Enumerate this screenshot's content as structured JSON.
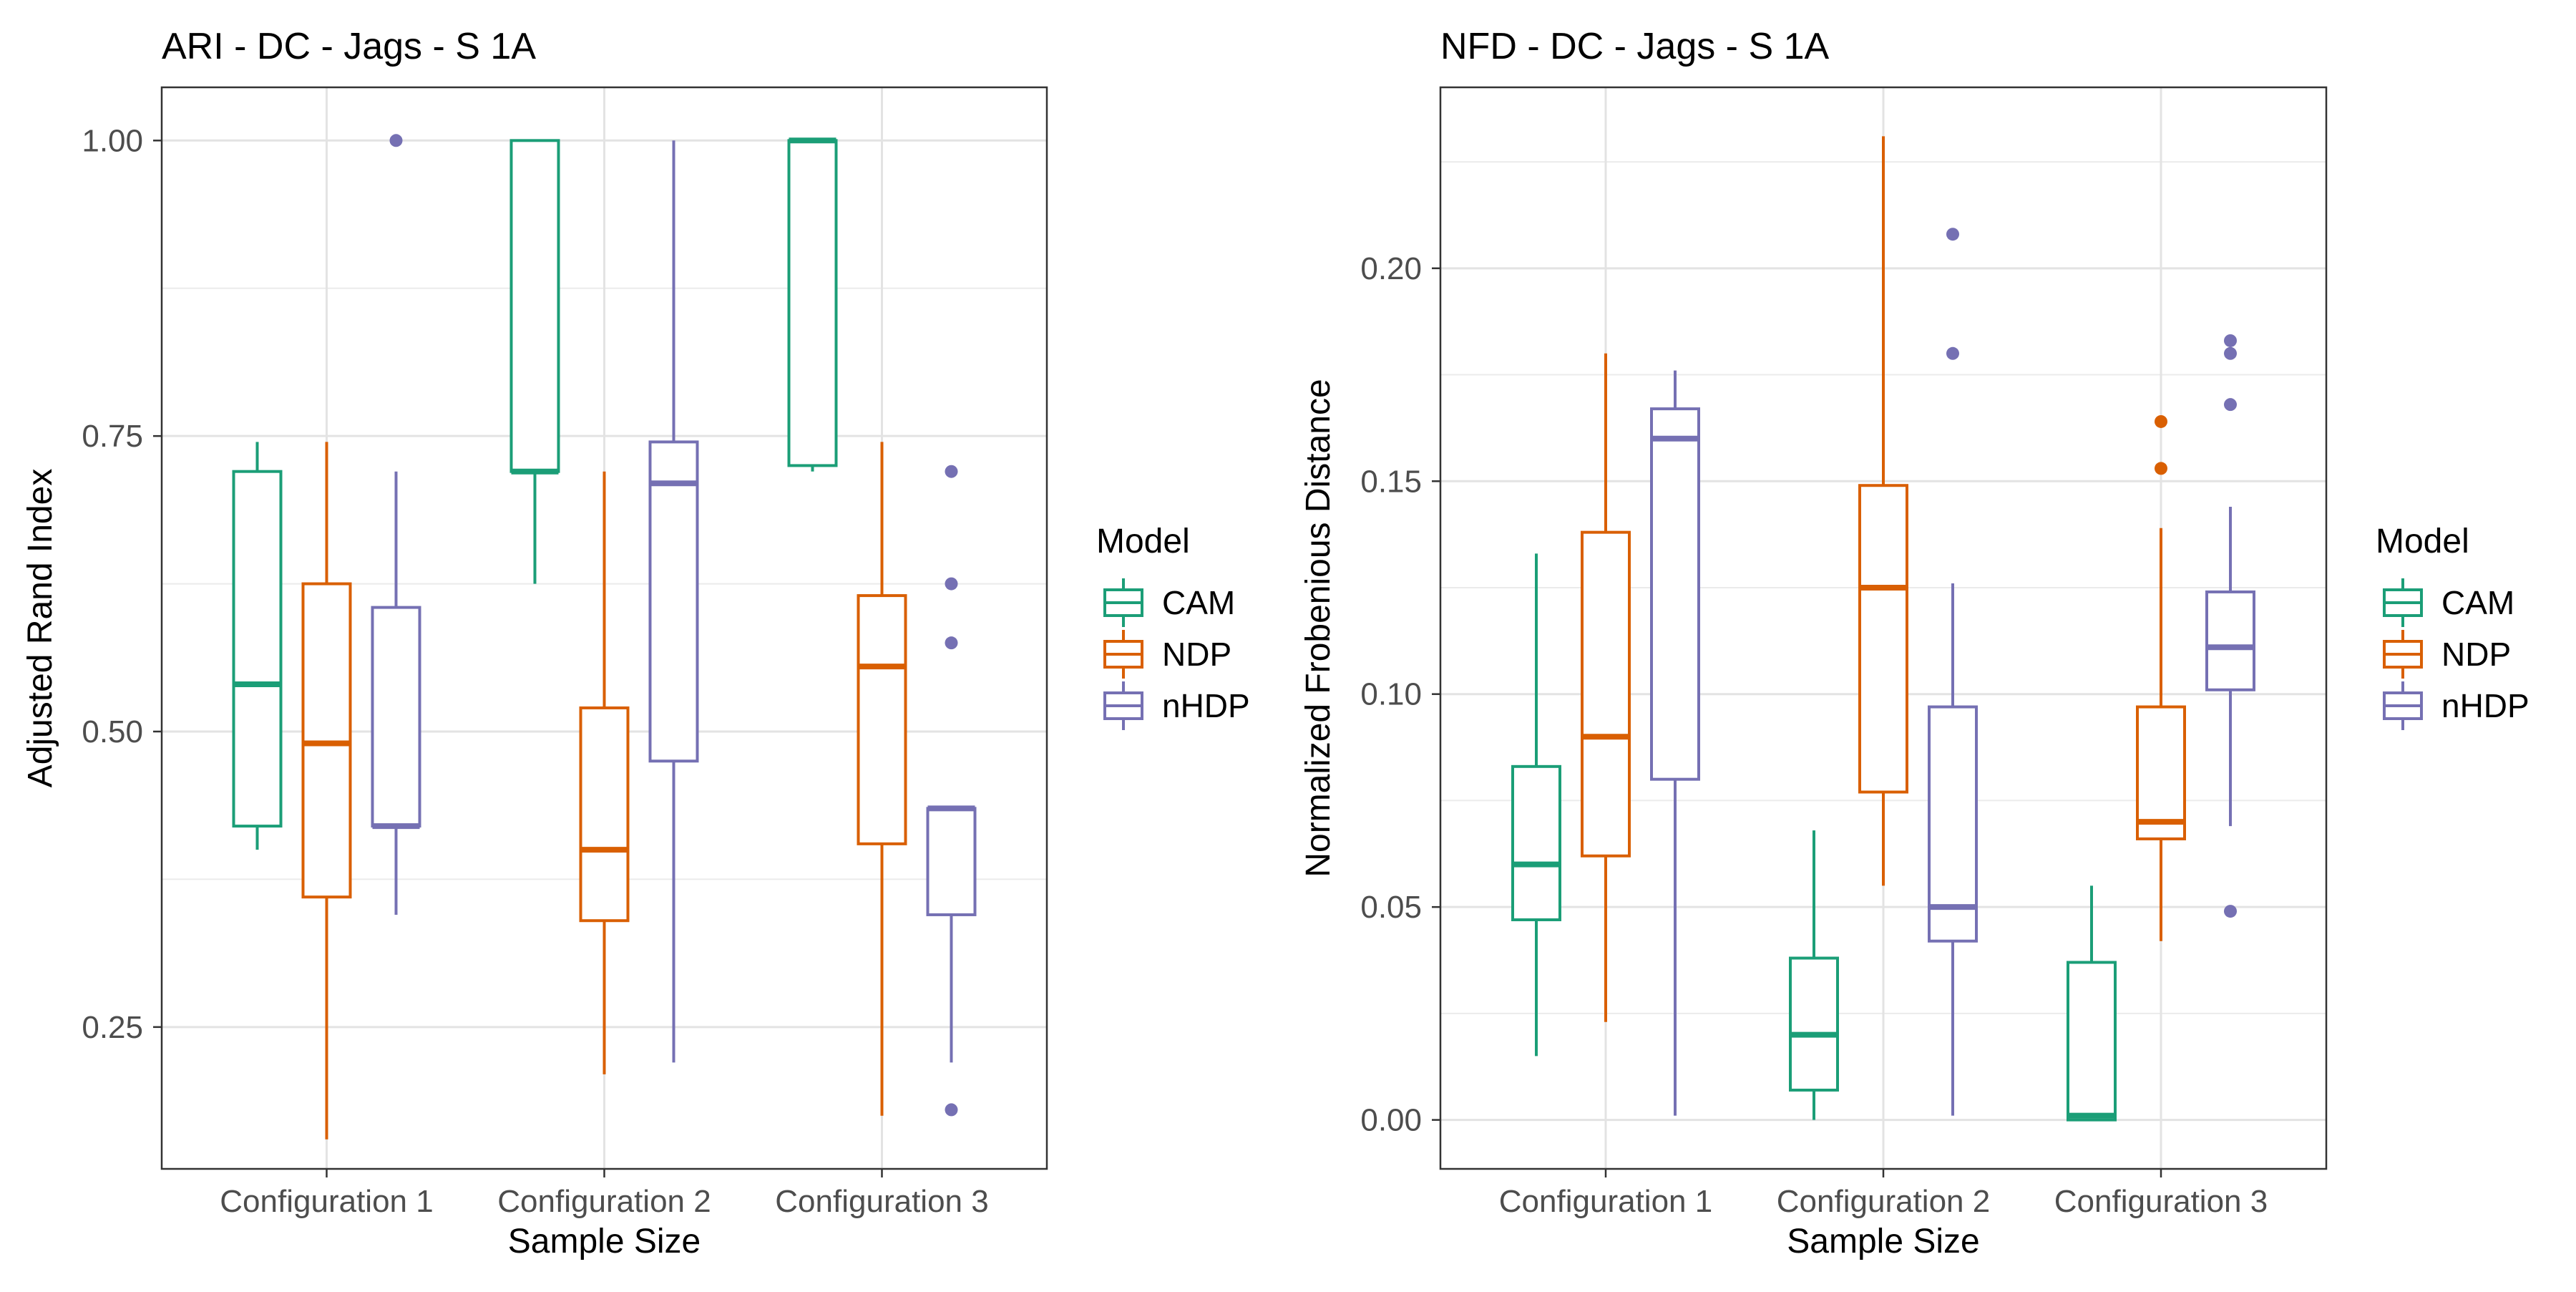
{
  "chart_data": [
    {
      "type": "boxplot",
      "title": "ARI - DC - Jags - S 1A",
      "xlabel": "Sample Size",
      "ylabel": "Adjusted Rand Index",
      "categories": [
        "Configuration 1",
        "Configuration 2",
        "Configuration 3"
      ],
      "ylim": [
        0.13,
        1.045
      ],
      "yticks": [
        0.25,
        0.5,
        0.75,
        1.0
      ],
      "ytick_labels": [
        "0.25",
        "0.50",
        "0.75",
        "1.00"
      ],
      "grid": true,
      "legend": {
        "title": "Model",
        "position": "right"
      },
      "series": [
        {
          "name": "CAM",
          "color": "#1b9e77",
          "boxes": [
            {
              "whisker_low": 0.4,
              "q1": 0.42,
              "median": 0.54,
              "q3": 0.72,
              "whisker_high": 0.745,
              "outliers": []
            },
            {
              "whisker_low": 0.625,
              "q1": 0.72,
              "median": 0.72,
              "q3": 1.0,
              "whisker_high": 1.0,
              "outliers": []
            },
            {
              "whisker_low": 0.72,
              "q1": 0.725,
              "median": 1.0,
              "q3": 1.0,
              "whisker_high": 1.0,
              "outliers": []
            }
          ]
        },
        {
          "name": "NDP",
          "color": "#d95f02",
          "boxes": [
            {
              "whisker_low": 0.155,
              "q1": 0.36,
              "median": 0.49,
              "q3": 0.625,
              "whisker_high": 0.745,
              "outliers": []
            },
            {
              "whisker_low": 0.21,
              "q1": 0.34,
              "median": 0.4,
              "q3": 0.52,
              "whisker_high": 0.72,
              "outliers": []
            },
            {
              "whisker_low": 0.175,
              "q1": 0.405,
              "median": 0.555,
              "q3": 0.615,
              "whisker_high": 0.745,
              "outliers": []
            }
          ]
        },
        {
          "name": "nHDP",
          "color": "#7570b3",
          "boxes": [
            {
              "whisker_low": 0.345,
              "q1": 0.42,
              "median": 0.42,
              "q3": 0.605,
              "whisker_high": 0.72,
              "outliers": [
                1.0
              ]
            },
            {
              "whisker_low": 0.22,
              "q1": 0.475,
              "median": 0.71,
              "q3": 0.745,
              "whisker_high": 1.0,
              "outliers": []
            },
            {
              "whisker_low": 0.22,
              "q1": 0.345,
              "median": 0.435,
              "q3": 0.435,
              "whisker_high": 0.435,
              "outliers": [
                0.72,
                0.625,
                0.575,
                0.18
              ]
            }
          ]
        }
      ]
    },
    {
      "type": "boxplot",
      "title": "NFD - DC - Jags - S 1A",
      "xlabel": "Sample Size",
      "ylabel": "Normalized Frobenious Distance",
      "categories": [
        "Configuration 1",
        "Configuration 2",
        "Configuration 3"
      ],
      "ylim": [
        -0.0115,
        0.2425
      ],
      "yticks": [
        0.0,
        0.05,
        0.1,
        0.15,
        0.2
      ],
      "ytick_labels": [
        "0.00",
        "0.05",
        "0.10",
        "0.15",
        "0.20"
      ],
      "grid": true,
      "legend": {
        "title": "Model",
        "position": "right"
      },
      "series": [
        {
          "name": "CAM",
          "color": "#1b9e77",
          "boxes": [
            {
              "whisker_low": 0.015,
              "q1": 0.047,
              "median": 0.06,
              "q3": 0.083,
              "whisker_high": 0.133,
              "outliers": []
            },
            {
              "whisker_low": 0.0,
              "q1": 0.007,
              "median": 0.02,
              "q3": 0.038,
              "whisker_high": 0.068,
              "outliers": []
            },
            {
              "whisker_low": 0.0,
              "q1": 0.0,
              "median": 0.001,
              "q3": 0.037,
              "whisker_high": 0.055,
              "outliers": []
            }
          ]
        },
        {
          "name": "NDP",
          "color": "#d95f02",
          "boxes": [
            {
              "whisker_low": 0.023,
              "q1": 0.062,
              "median": 0.09,
              "q3": 0.138,
              "whisker_high": 0.18,
              "outliers": []
            },
            {
              "whisker_low": 0.055,
              "q1": 0.077,
              "median": 0.125,
              "q3": 0.149,
              "whisker_high": 0.231,
              "outliers": []
            },
            {
              "whisker_low": 0.042,
              "q1": 0.066,
              "median": 0.07,
              "q3": 0.097,
              "whisker_high": 0.139,
              "outliers": [
                0.164,
                0.153
              ]
            }
          ]
        },
        {
          "name": "nHDP",
          "color": "#7570b3",
          "boxes": [
            {
              "whisker_low": 0.001,
              "q1": 0.08,
              "median": 0.16,
              "q3": 0.167,
              "whisker_high": 0.176,
              "outliers": []
            },
            {
              "whisker_low": 0.001,
              "q1": 0.042,
              "median": 0.05,
              "q3": 0.097,
              "whisker_high": 0.126,
              "outliers": [
                0.208,
                0.18
              ]
            },
            {
              "whisker_low": 0.069,
              "q1": 0.101,
              "median": 0.111,
              "q3": 0.124,
              "whisker_high": 0.144,
              "outliers": [
                0.183,
                0.18,
                0.168,
                0.049
              ]
            }
          ]
        }
      ]
    }
  ]
}
